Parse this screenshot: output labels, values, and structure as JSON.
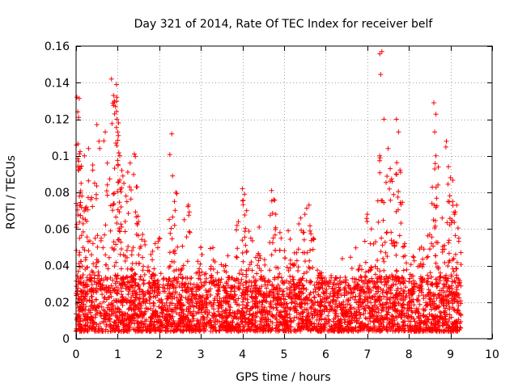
{
  "chart_data": {
    "type": "scatter",
    "title": "Day 321 of 2014, Rate Of TEC Index for receiver belf",
    "xlabel": "GPS time / hours",
    "ylabel": "ROTI / TECUs",
    "xlim": [
      0,
      10
    ],
    "ylim": [
      0,
      0.16
    ],
    "x_ticks": [
      0,
      1,
      2,
      3,
      4,
      5,
      6,
      7,
      8,
      9,
      10
    ],
    "x_tick_labels": [
      "0",
      "1",
      "2",
      "3",
      "4",
      "5",
      "6",
      "7",
      "8",
      "9",
      "10"
    ],
    "y_ticks": [
      0,
      0.02,
      0.04,
      0.06,
      0.08,
      0.1,
      0.12,
      0.14,
      0.16
    ],
    "y_tick_labels": [
      "0",
      "0.02",
      "0.04",
      "0.06",
      "0.08",
      "0.1",
      "0.12",
      "0.14",
      "0.16"
    ],
    "grid": true,
    "marker": "+",
    "marker_color": "#ff0000",
    "series": [
      {
        "name": "ROTI",
        "x_range": [
          0,
          9.25
        ],
        "points": [
          [
            0.02,
            0.132
          ],
          [
            0.04,
            0.124
          ],
          [
            0.06,
            0.121
          ],
          [
            0.08,
            0.101
          ],
          [
            0.1,
            0.093
          ],
          [
            0.12,
            0.085
          ],
          [
            0.14,
            0.078
          ],
          [
            0.2,
            0.1
          ],
          [
            0.25,
            0.072
          ],
          [
            0.3,
            0.104
          ],
          [
            0.4,
            0.095
          ],
          [
            0.5,
            0.117
          ],
          [
            0.55,
            0.108
          ],
          [
            0.7,
            0.113
          ],
          [
            0.75,
            0.096
          ],
          [
            0.85,
            0.142
          ],
          [
            0.9,
            0.133
          ],
          [
            0.92,
            0.13
          ],
          [
            0.95,
            0.127
          ],
          [
            0.97,
            0.139
          ],
          [
            0.98,
            0.12
          ],
          [
            1.0,
            0.113
          ],
          [
            1.02,
            0.118
          ],
          [
            1.05,
            0.1
          ],
          [
            1.1,
            0.092
          ],
          [
            1.15,
            0.085
          ],
          [
            1.2,
            0.078
          ],
          [
            1.3,
            0.096
          ],
          [
            1.4,
            0.101
          ],
          [
            1.45,
            0.083
          ],
          [
            1.5,
            0.064
          ],
          [
            1.6,
            0.057
          ],
          [
            1.8,
            0.046
          ],
          [
            1.9,
            0.052
          ],
          [
            2.0,
            0.055
          ],
          [
            2.3,
            0.112
          ],
          [
            2.32,
            0.089
          ],
          [
            2.4,
            0.08
          ],
          [
            2.6,
            0.065
          ],
          [
            2.7,
            0.073
          ],
          [
            3.0,
            0.05
          ],
          [
            3.3,
            0.043
          ],
          [
            3.6,
            0.04
          ],
          [
            3.9,
            0.064
          ],
          [
            4.0,
            0.082
          ],
          [
            4.05,
            0.079
          ],
          [
            4.1,
            0.07
          ],
          [
            4.2,
            0.055
          ],
          [
            4.4,
            0.061
          ],
          [
            4.7,
            0.081
          ],
          [
            4.75,
            0.076
          ],
          [
            4.8,
            0.068
          ],
          [
            4.9,
            0.058
          ],
          [
            5.1,
            0.059
          ],
          [
            5.3,
            0.047
          ],
          [
            5.4,
            0.066
          ],
          [
            5.5,
            0.068
          ],
          [
            5.6,
            0.073
          ],
          [
            5.7,
            0.055
          ],
          [
            5.9,
            0.036
          ],
          [
            6.2,
            0.03
          ],
          [
            6.5,
            0.026
          ],
          [
            6.8,
            0.038
          ],
          [
            7.0,
            0.068
          ],
          [
            7.1,
            0.06
          ],
          [
            7.2,
            0.053
          ],
          [
            7.3,
            0.1
          ],
          [
            7.35,
            0.157
          ],
          [
            7.4,
            0.12
          ],
          [
            7.5,
            0.104
          ],
          [
            7.55,
            0.093
          ],
          [
            7.6,
            0.086
          ],
          [
            7.7,
            0.12
          ],
          [
            7.75,
            0.113
          ],
          [
            7.8,
            0.091
          ],
          [
            7.9,
            0.052
          ],
          [
            8.1,
            0.045
          ],
          [
            8.3,
            0.05
          ],
          [
            8.5,
            0.057
          ],
          [
            8.6,
            0.129
          ],
          [
            8.62,
            0.113
          ],
          [
            8.65,
            0.1
          ],
          [
            8.7,
            0.084
          ],
          [
            8.8,
            0.066
          ],
          [
            8.9,
            0.108
          ],
          [
            8.95,
            0.094
          ],
          [
            9.0,
            0.088
          ],
          [
            9.05,
            0.075
          ],
          [
            9.1,
            0.068
          ],
          [
            9.15,
            0.073
          ],
          [
            9.2,
            0.055
          ]
        ]
      }
    ]
  }
}
